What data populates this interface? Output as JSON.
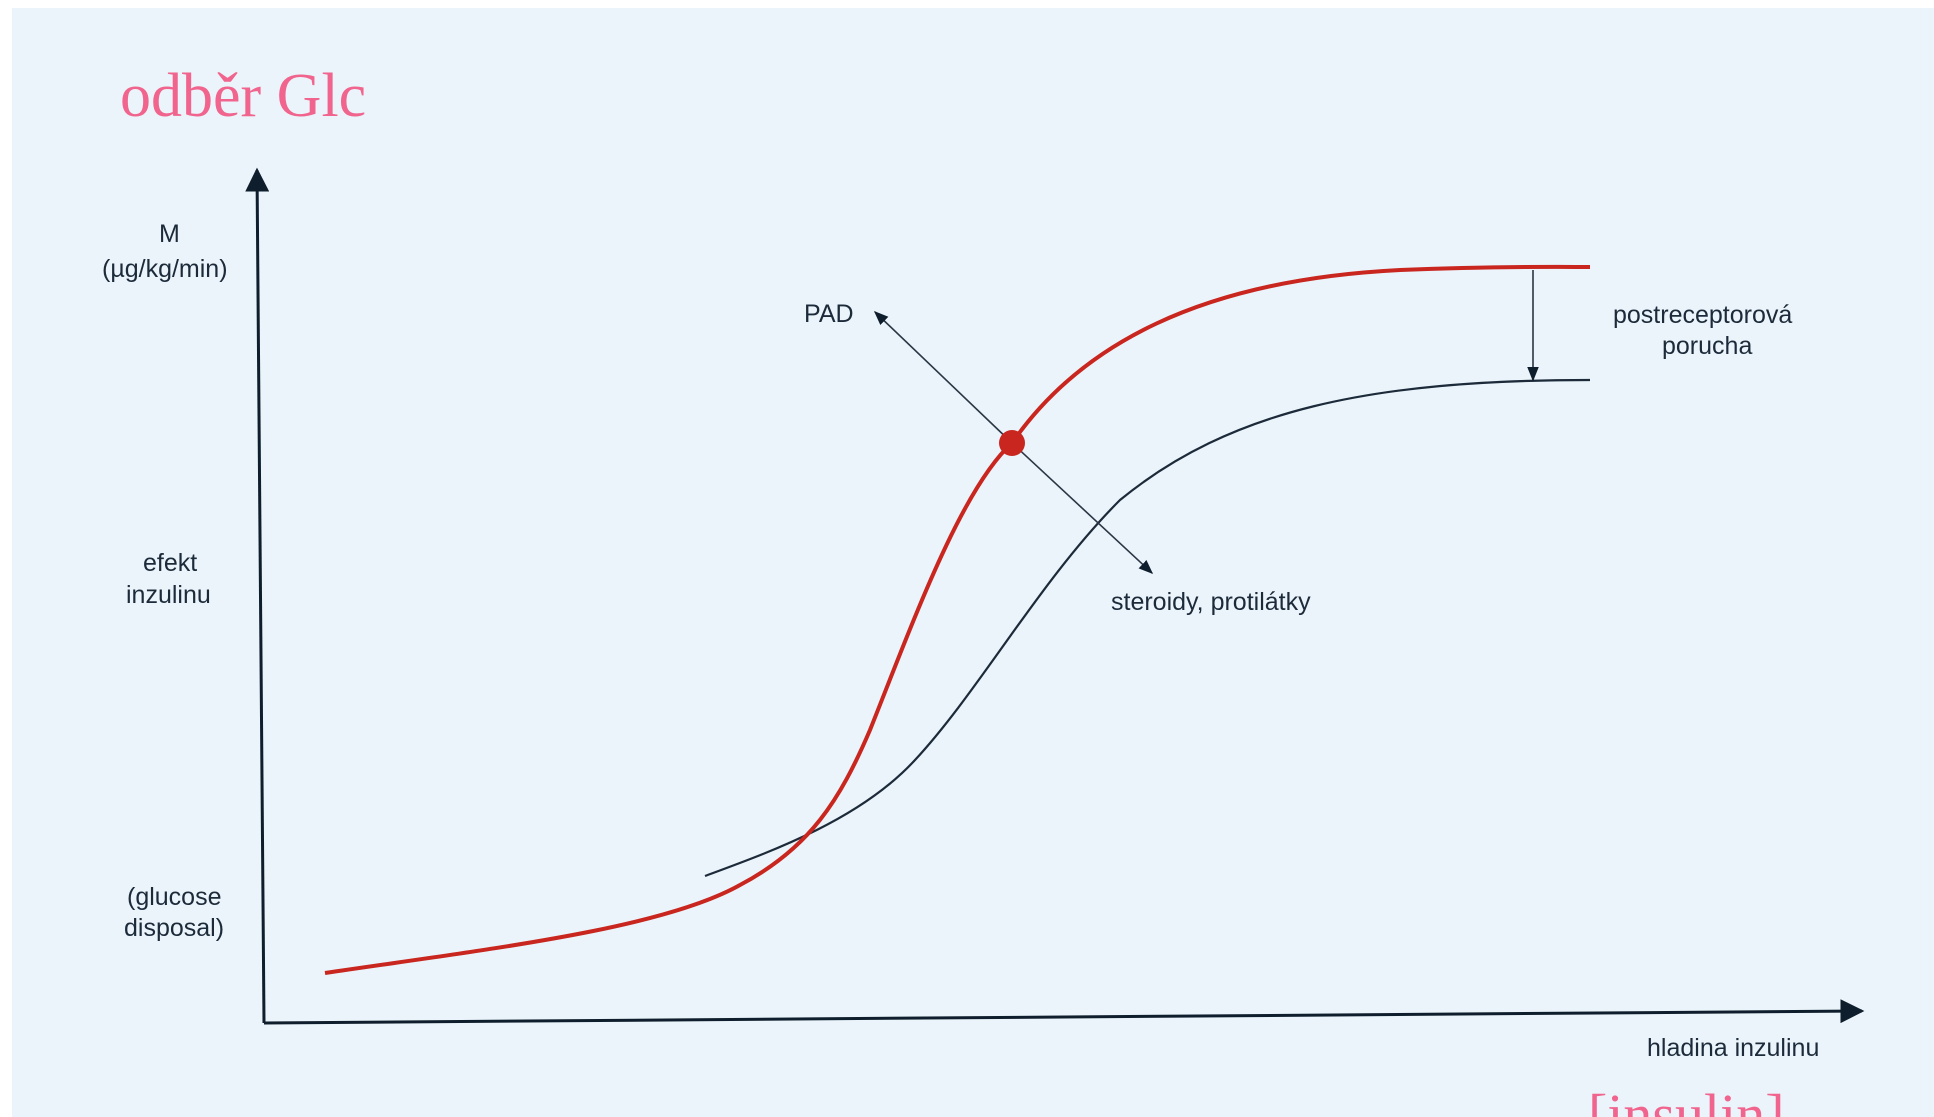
{
  "title_overlay": "odběr Glc",
  "bottom_overlay": "[insulin]",
  "y_axis": {
    "label_top_1": "M",
    "label_top_2": "(µg/kg/min)",
    "label_mid_1": "efekt",
    "label_mid_2": "inzulinu",
    "label_bot_1": "(glucose",
    "label_bot_2": "disposal)"
  },
  "x_axis": {
    "label": "hladina inzulinu"
  },
  "annotations": {
    "pad": "PAD",
    "steroids": "steroidy, protilátky",
    "postreceptor_1": "postreceptorová",
    "postreceptor_2": "porucha"
  },
  "colors": {
    "background": "#eaf4fa",
    "normal_curve": "#c8261e",
    "shifted_curve": "#1c2a3a",
    "overlay_text": "#f0648e",
    "axis": "#0f1e2c"
  }
}
